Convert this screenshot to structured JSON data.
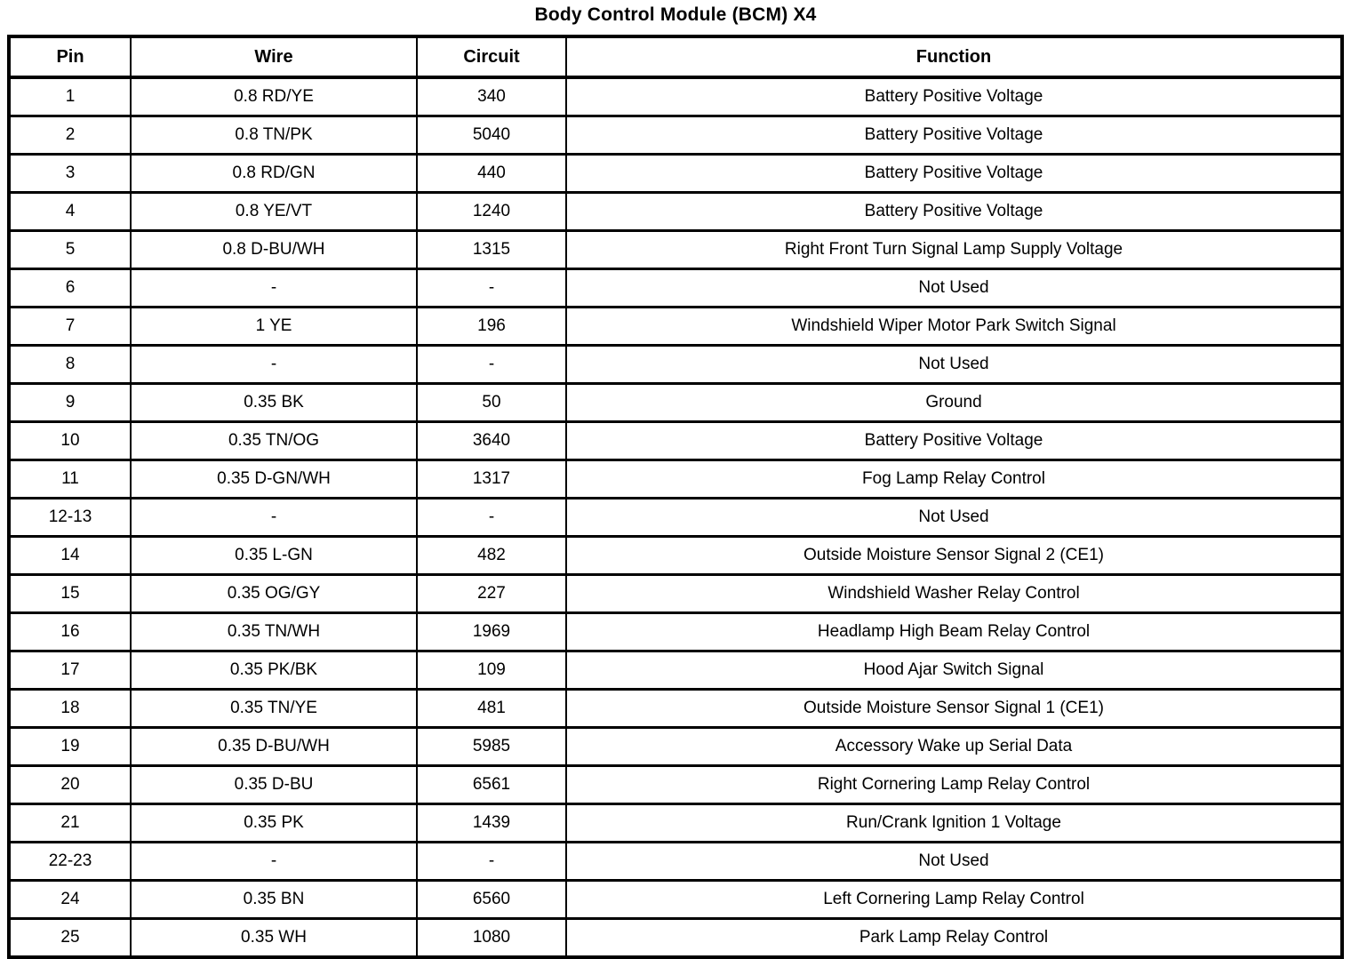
{
  "title": "Body Control Module (BCM) X4",
  "colors": {
    "background": "#ffffff",
    "border": "#000000",
    "text": "#000000"
  },
  "table": {
    "columns": [
      {
        "key": "pin",
        "label": "Pin"
      },
      {
        "key": "wire",
        "label": "Wire"
      },
      {
        "key": "circuit",
        "label": "Circuit"
      },
      {
        "key": "function",
        "label": "Function"
      }
    ],
    "rows": [
      {
        "pin": "1",
        "wire": "0.8 RD/YE",
        "circuit": "340",
        "function": "Battery Positive Voltage"
      },
      {
        "pin": "2",
        "wire": "0.8 TN/PK",
        "circuit": "5040",
        "function": "Battery Positive Voltage"
      },
      {
        "pin": "3",
        "wire": "0.8 RD/GN",
        "circuit": "440",
        "function": "Battery Positive Voltage"
      },
      {
        "pin": "4",
        "wire": "0.8 YE/VT",
        "circuit": "1240",
        "function": "Battery Positive Voltage"
      },
      {
        "pin": "5",
        "wire": "0.8 D-BU/WH",
        "circuit": "1315",
        "function": "Right Front Turn Signal Lamp Supply Voltage"
      },
      {
        "pin": "6",
        "wire": "-",
        "circuit": "-",
        "function": "Not Used"
      },
      {
        "pin": "7",
        "wire": "1 YE",
        "circuit": "196",
        "function": "Windshield Wiper Motor Park Switch Signal"
      },
      {
        "pin": "8",
        "wire": "-",
        "circuit": "-",
        "function": "Not Used"
      },
      {
        "pin": "9",
        "wire": "0.35 BK",
        "circuit": "50",
        "function": "Ground"
      },
      {
        "pin": "10",
        "wire": "0.35 TN/OG",
        "circuit": "3640",
        "function": "Battery Positive Voltage"
      },
      {
        "pin": "11",
        "wire": "0.35 D-GN/WH",
        "circuit": "1317",
        "function": "Fog Lamp Relay Control"
      },
      {
        "pin": "12-13",
        "wire": "-",
        "circuit": "-",
        "function": "Not Used"
      },
      {
        "pin": "14",
        "wire": "0.35 L-GN",
        "circuit": "482",
        "function": "Outside Moisture Sensor Signal 2 (CE1)"
      },
      {
        "pin": "15",
        "wire": "0.35 OG/GY",
        "circuit": "227",
        "function": "Windshield Washer Relay Control"
      },
      {
        "pin": "16",
        "wire": "0.35 TN/WH",
        "circuit": "1969",
        "function": "Headlamp High Beam Relay Control"
      },
      {
        "pin": "17",
        "wire": "0.35 PK/BK",
        "circuit": "109",
        "function": "Hood Ajar Switch Signal"
      },
      {
        "pin": "18",
        "wire": "0.35 TN/YE",
        "circuit": "481",
        "function": "Outside Moisture Sensor Signal 1 (CE1)"
      },
      {
        "pin": "19",
        "wire": "0.35 D-BU/WH",
        "circuit": "5985",
        "function": "Accessory Wake up Serial Data"
      },
      {
        "pin": "20",
        "wire": "0.35 D-BU",
        "circuit": "6561",
        "function": "Right Cornering Lamp Relay Control"
      },
      {
        "pin": "21",
        "wire": "0.35 PK",
        "circuit": "1439",
        "function": "Run/Crank Ignition 1 Voltage"
      },
      {
        "pin": "22-23",
        "wire": "-",
        "circuit": "-",
        "function": "Not Used"
      },
      {
        "pin": "24",
        "wire": "0.35 BN",
        "circuit": "6560",
        "function": "Left Cornering Lamp Relay Control"
      },
      {
        "pin": "25",
        "wire": "0.35 WH",
        "circuit": "1080",
        "function": "Park Lamp Relay Control"
      }
    ]
  }
}
